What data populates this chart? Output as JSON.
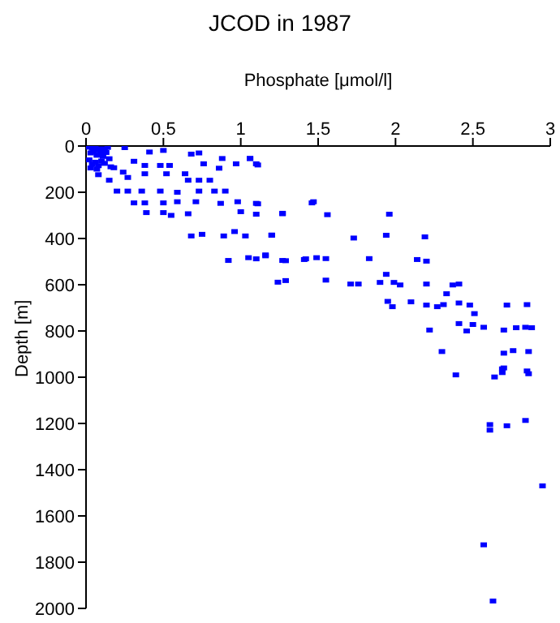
{
  "chart_data": {
    "type": "scatter",
    "title": "JCOD in 1987",
    "xlabel": "Phosphate [μmol/l]",
    "ylabel": "Depth [m]",
    "xlim": [
      0,
      3
    ],
    "xticks": [
      0,
      0.5,
      1,
      1.5,
      2,
      2.5,
      3
    ],
    "ylim": [
      2000,
      0
    ],
    "yticks": [
      0,
      200,
      400,
      600,
      800,
      1000,
      1200,
      1400,
      1600,
      1800,
      2000
    ],
    "marker": "square",
    "series": [
      {
        "color": "#0000ff",
        "x": [
          0.02,
          0.04,
          0.06,
          0.08,
          0.1,
          0.12,
          0.14,
          0.03,
          0.05,
          0.07,
          0.09,
          0.11,
          0.13,
          0.15,
          0.02,
          0.06,
          0.1,
          0.04,
          0.08,
          0.12,
          0.16,
          0.03,
          0.07,
          0.25,
          0.41,
          0.5,
          0.68,
          0.73,
          0.88,
          0.97,
          1.06,
          1.1,
          0.76,
          0.86,
          0.31,
          0.38,
          0.48,
          0.54,
          0.18,
          0.24,
          0.27,
          0.38,
          0.52,
          0.64,
          0.66,
          0.73,
          0.8,
          0.08,
          0.15,
          0.2,
          0.27,
          0.36,
          0.48,
          0.59,
          0.73,
          0.83,
          0.9,
          0.31,
          0.38,
          0.5,
          0.59,
          0.71,
          0.87,
          0.98,
          1.1,
          1.47,
          0.39,
          0.5,
          0.55,
          0.66,
          1.0,
          1.1,
          1.27,
          0.68,
          0.75,
          0.89,
          0.96,
          1.03,
          1.2,
          0.92,
          1.05,
          1.1,
          1.16,
          1.27,
          1.42,
          1.49,
          1.24,
          1.29,
          1.06,
          1.11,
          1.11,
          1.46,
          1.27,
          1.56,
          1.96,
          1.2,
          1.73,
          1.94,
          2.19,
          1.16,
          1.29,
          1.41,
          1.55,
          1.83,
          2.14,
          2.2,
          1.55,
          1.71,
          1.76,
          1.9,
          1.99,
          2.03,
          1.94,
          2.2,
          2.33,
          2.37,
          2.41,
          1.95,
          1.98,
          2.1,
          2.2,
          2.27,
          2.31,
          2.41,
          2.48,
          2.51,
          2.72,
          2.85,
          2.41,
          2.5,
          2.46,
          2.57,
          2.7,
          2.78,
          2.84,
          2.88,
          2.22,
          2.3,
          2.7,
          2.76,
          2.86,
          2.69,
          2.85,
          2.39,
          2.64,
          2.7,
          2.69,
          2.86,
          2.61,
          2.61,
          2.72,
          2.84,
          2.95,
          2.57,
          2.63
        ],
        "values": [
          5,
          10,
          8,
          15,
          12,
          20,
          6,
          30,
          25,
          40,
          35,
          45,
          28,
          55,
          60,
          70,
          65,
          80,
          85,
          75,
          90,
          95,
          100,
          7,
          26,
          19,
          35,
          30,
          54,
          77,
          54,
          77,
          77,
          96,
          66,
          84,
          84,
          84,
          94,
          113,
          136,
          120,
          120,
          120,
          148,
          148,
          148,
          124,
          148,
          195,
          195,
          195,
          195,
          200,
          195,
          195,
          195,
          246,
          246,
          246,
          241,
          241,
          248,
          241,
          248,
          241,
          288,
          288,
          300,
          293,
          284,
          295,
          291,
          389,
          382,
          389,
          370,
          389,
          385,
          495,
          483,
          488,
          471,
          495,
          488,
          483,
          589,
          582,
          54,
          82,
          250,
          246,
          293,
          297,
          295,
          386,
          398,
          386,
          393,
          475,
          496,
          491,
          487,
          487,
          491,
          498,
          580,
          597,
          597,
          590,
          590,
          601,
          555,
          597,
          639,
          601,
          597,
          672,
          695,
          674,
          688,
          695,
          686,
          679,
          688,
          725,
          688,
          686,
          768,
          772,
          800,
          784,
          796,
          786,
          784,
          786,
          796,
          889,
          896,
          885,
          889,
          964,
          973,
          990,
          999,
          960,
          980,
          985,
          1205,
          1229,
          1210,
          1187,
          1470,
          1725,
          1968
        ]
      }
    ]
  }
}
